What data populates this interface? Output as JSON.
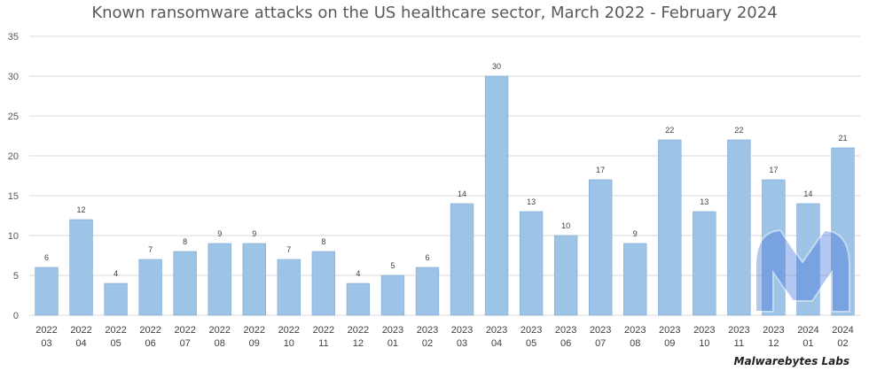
{
  "chart_data": {
    "type": "bar",
    "title": "Known ransomware attacks on the US healthcare sector, March 2022 - February 2024",
    "xlabel": "",
    "ylabel": "",
    "ylim": [
      0,
      35
    ],
    "yticks": [
      0,
      5,
      10,
      15,
      20,
      25,
      30,
      35
    ],
    "grid": true,
    "legend": "none",
    "categories": [
      [
        "2022",
        "03"
      ],
      [
        "2022",
        "04"
      ],
      [
        "2022",
        "05"
      ],
      [
        "2022",
        "06"
      ],
      [
        "2022",
        "07"
      ],
      [
        "2022",
        "08"
      ],
      [
        "2022",
        "09"
      ],
      [
        "2022",
        "10"
      ],
      [
        "2022",
        "11"
      ],
      [
        "2022",
        "12"
      ],
      [
        "2023",
        "01"
      ],
      [
        "2023",
        "02"
      ],
      [
        "2023",
        "03"
      ],
      [
        "2023",
        "04"
      ],
      [
        "2023",
        "05"
      ],
      [
        "2023",
        "06"
      ],
      [
        "2023",
        "07"
      ],
      [
        "2023",
        "08"
      ],
      [
        "2023",
        "09"
      ],
      [
        "2023",
        "10"
      ],
      [
        "2023",
        "11"
      ],
      [
        "2023",
        "12"
      ],
      [
        "2024",
        "01"
      ],
      [
        "2024",
        "02"
      ]
    ],
    "values": [
      6,
      12,
      4,
      7,
      8,
      9,
      9,
      7,
      8,
      4,
      5,
      6,
      14,
      30,
      13,
      10,
      17,
      9,
      22,
      13,
      22,
      17,
      14,
      21
    ],
    "colors": {
      "bar": "#9dc3e6",
      "bar_edge": "#7fa9d4",
      "grid": "#d9d9d9",
      "watermark": "#3d6fd8"
    }
  },
  "watermark": {
    "icon": "malwarebytes-logo-icon",
    "text": "Malwarebytes Labs"
  }
}
